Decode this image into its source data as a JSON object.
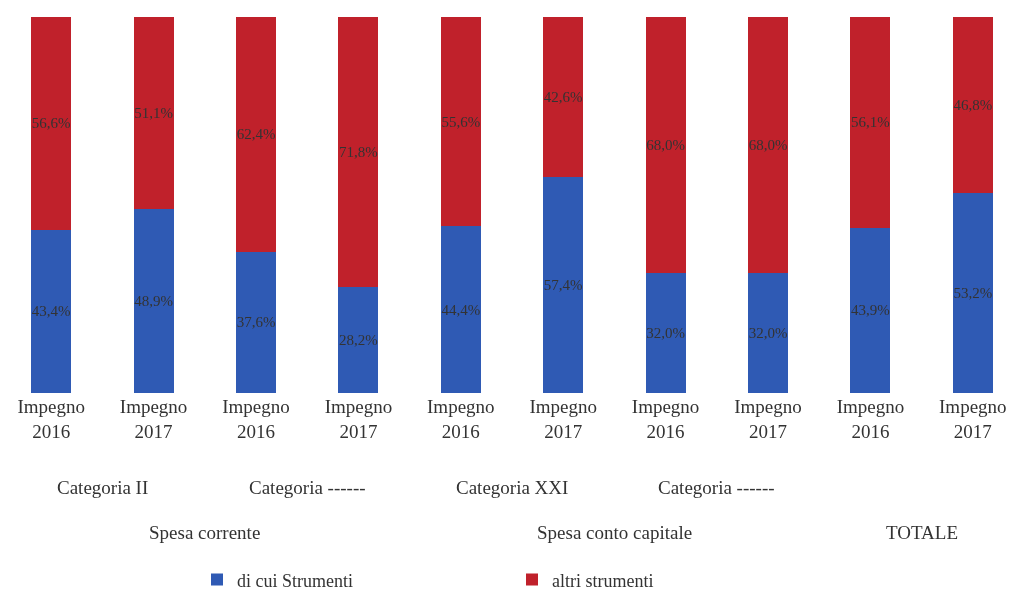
{
  "chart_data": {
    "type": "bar",
    "stacked": true,
    "categories": [
      "Impegno\n2016",
      "Impegno\n2017",
      "Impegno\n2016",
      "Impegno\n2017",
      "Impegno\n2016",
      "Impegno\n2017",
      "Impegno\n2016",
      "Impegno\n2017",
      "Impegno\n2016",
      "Impegno\n2017"
    ],
    "series": [
      {
        "name": "di cui Strumenti",
        "color": "#2f5ab4",
        "values": [
          43.4,
          48.9,
          37.6,
          28.2,
          44.4,
          57.4,
          32.0,
          32.0,
          43.9,
          53.2
        ],
        "value_labels": [
          "43,4%",
          "48,9%",
          "37,6%",
          "28,2%",
          "44,4%",
          "57,4%",
          "32,0%",
          "32,0%",
          "43,9%",
          "53,2%"
        ]
      },
      {
        "name": "altri strumenti",
        "color": "#c0212b",
        "values": [
          56.6,
          51.1,
          62.4,
          71.8,
          55.6,
          42.6,
          68.0,
          68.0,
          56.1,
          46.8
        ],
        "value_labels": [
          "56,6%",
          "51,1%",
          "62,4%",
          "71,8%",
          "55,6%",
          "42,6%",
          "68,0%",
          "68,0%",
          "56,1%",
          "46,8%"
        ]
      }
    ],
    "annotations": [
      "Categoria II",
      "Categoria ------",
      "Categoria XXI",
      "Categoria ------",
      "Spesa corrente",
      "Spesa conto capitale",
      "TOTALE"
    ],
    "legend": "bottom"
  }
}
